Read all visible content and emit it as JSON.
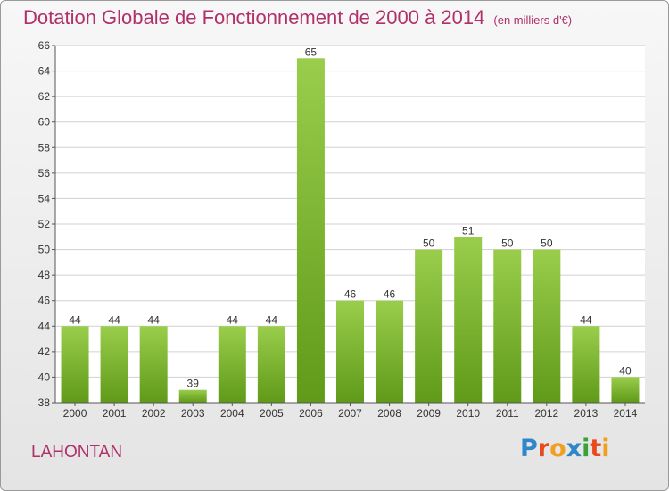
{
  "title": "Dotation Globale de Fonctionnement de 2000 à 2014",
  "subtitle": "(en milliers d'€)",
  "commune": "LAHONTAN",
  "logo": {
    "text": "Proxiti",
    "letter_colors": [
      "#2f86c8",
      "#e8491d",
      "#f0a020",
      "#2f86c8",
      "#3aa03a",
      "#e8491d",
      "#f0a020"
    ]
  },
  "colors": {
    "title": "#b0306a",
    "bar_top": "#9acd4c",
    "bar_bottom": "#5f9a18",
    "grid": "#d0d0d0",
    "text": "#333333"
  },
  "chart_data": {
    "type": "bar",
    "title": "Dotation Globale de Fonctionnement de 2000 à 2014",
    "subtitle": "(en milliers d'€)",
    "xlabel": "",
    "ylabel": "",
    "categories": [
      "2000",
      "2001",
      "2002",
      "2003",
      "2004",
      "2005",
      "2006",
      "2007",
      "2008",
      "2009",
      "2010",
      "2011",
      "2012",
      "2013",
      "2014"
    ],
    "values": [
      44,
      44,
      44,
      39,
      44,
      44,
      65,
      46,
      46,
      50,
      51,
      50,
      50,
      44,
      40
    ],
    "ylim": [
      38,
      66
    ],
    "yticks": [
      38,
      40,
      42,
      44,
      46,
      48,
      50,
      52,
      54,
      56,
      58,
      60,
      62,
      64,
      66
    ],
    "grid": true,
    "legend": "none"
  }
}
